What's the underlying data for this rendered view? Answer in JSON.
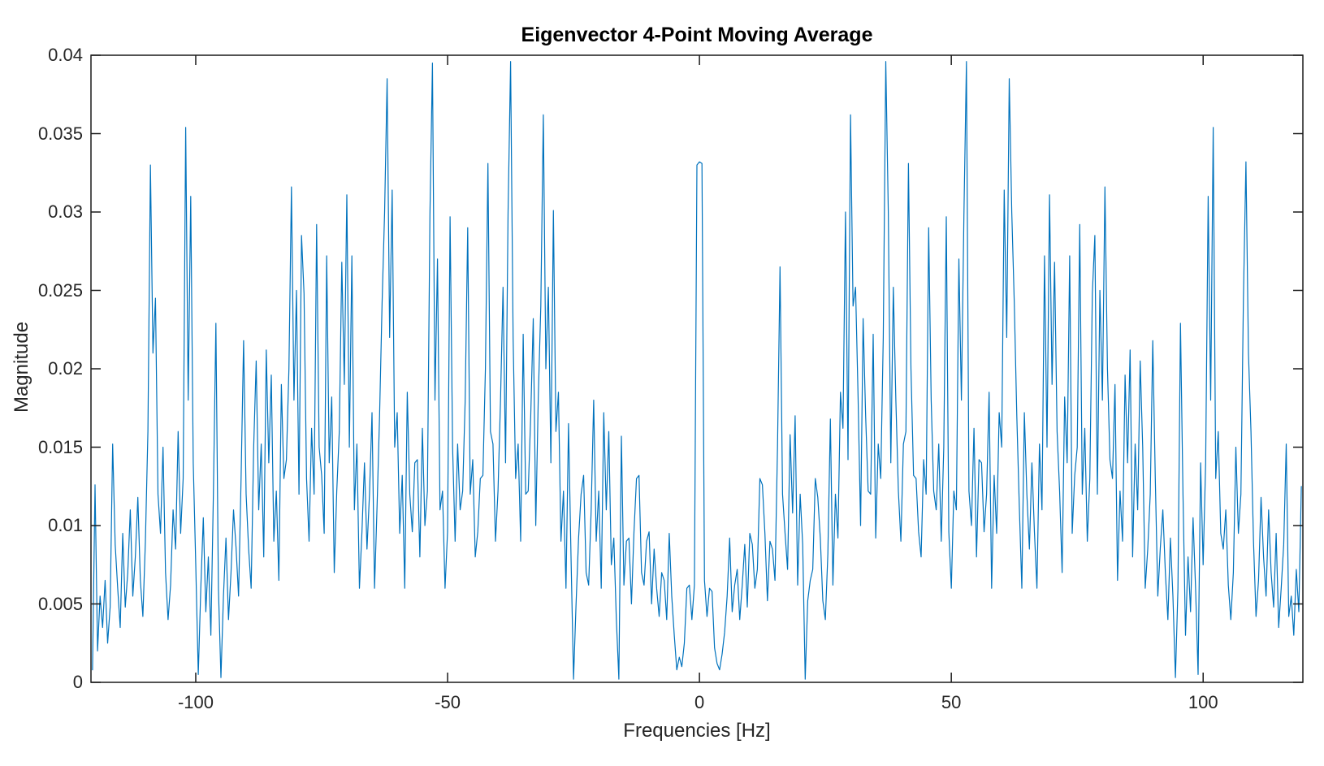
{
  "colors": {
    "line": "#0072BD",
    "axis": "#1a1a1a",
    "tick_text": "#262626",
    "title_text": "#000000",
    "background": "#ffffff"
  },
  "chart_data": {
    "type": "line",
    "title": "Eigenvector 4-Point Moving Average",
    "xlabel": "Frequencies [Hz]",
    "ylabel": "Magnitude",
    "xlim": [
      -120.8,
      119.8
    ],
    "ylim": [
      0,
      0.04
    ],
    "x_ticks": [
      -100,
      -50,
      0,
      50,
      100
    ],
    "x_tick_labels": [
      "-100",
      "-50",
      "0",
      "50",
      "100"
    ],
    "y_ticks": [
      0,
      0.005,
      0.01,
      0.015,
      0.02,
      0.025,
      0.03,
      0.035,
      0.04
    ],
    "y_tick_labels": [
      "0",
      "0.005",
      "0.01",
      "0.015",
      "0.02",
      "0.025",
      "0.03",
      "0.035",
      "0.04"
    ],
    "grid": false,
    "box": true,
    "tick_direction": "in",
    "legend": null,
    "line_color": "#0072BD",
    "series": [
      {
        "name": "eigenvector-4pt-moving-average-spectrum",
        "x_start": -120.5,
        "x_step": 0.5,
        "y_scale": 0.0001,
        "y_scaled": [
          8,
          126,
          20,
          55,
          35,
          65,
          25,
          48,
          152,
          88,
          60,
          35,
          95,
          48,
          70,
          110,
          55,
          80,
          118,
          65,
          42,
          90,
          160,
          330,
          210,
          245,
          120,
          95,
          150,
          70,
          40,
          62,
          110,
          85,
          160,
          95,
          130,
          354,
          180,
          310,
          140,
          75,
          5,
          60,
          105,
          45,
          80,
          30,
          120,
          229,
          60,
          3,
          55,
          92,
          40,
          70,
          110,
          86,
          55,
          130,
          218,
          120,
          85,
          60,
          150,
          205,
          110,
          152,
          80,
          212,
          140,
          196,
          90,
          122,
          65,
          190,
          130,
          142,
          200,
          316,
          180,
          250,
          120,
          285,
          248,
          130,
          90,
          162,
          120,
          292,
          150,
          132,
          95,
          272,
          140,
          182,
          70,
          122,
          160,
          268,
          190,
          311,
          150,
          272,
          110,
          152,
          60,
          96,
          140,
          85,
          120,
          172,
          60,
          112,
          170,
          242,
          300,
          385,
          220,
          314,
          150,
          172,
          95,
          132,
          60,
          185,
          120,
          96,
          140,
          142,
          80,
          162,
          100,
          122,
          298,
          395,
          180,
          270,
          110,
          122,
          60,
          96,
          297,
          150,
          90,
          152,
          110,
          122,
          180,
          290,
          120,
          142,
          80,
          96,
          130,
          132,
          200,
          331,
          160,
          152,
          90,
          122,
          180,
          252,
          140,
          300,
          396,
          220,
          130,
          152,
          90,
          222,
          120,
          122,
          170,
          232,
          100,
          182,
          240,
          362,
          200,
          252,
          140,
          301,
          160,
          185,
          90,
          122,
          60,
          165,
          80,
          2,
          50,
          92,
          120,
          132,
          70,
          62,
          110,
          180,
          90,
          122,
          60,
          172,
          110,
          160,
          75,
          92,
          40,
          2,
          157,
          62,
          90,
          92,
          50,
          96,
          130,
          132,
          70,
          62,
          90,
          96,
          50,
          85,
          60,
          42,
          70,
          65,
          40,
          95,
          55,
          30,
          8,
          16,
          10,
          25,
          60,
          62,
          40,
          62,
          330,
          332,
          331,
          65,
          42,
          60,
          58,
          22,
          12,
          8,
          18,
          32,
          55,
          92,
          45,
          62,
          72,
          40,
          62,
          88,
          48,
          95,
          88,
          60,
          72,
          130,
          126,
          95,
          52,
          90,
          85,
          65,
          150,
          265,
          120,
          95,
          72,
          158,
          108,
          170,
          62,
          120,
          88,
          2,
          52,
          65,
          72,
          130,
          118,
          92,
          52,
          40,
          82,
          168,
          62,
          120,
          92,
          185,
          162,
          300,
          142,
          362,
          240,
          252,
          182,
          100,
          232,
          170,
          122,
          120,
          222,
          92,
          152,
          130,
          220,
          396,
          300,
          140,
          252,
          180,
          122,
          90,
          152,
          160,
          331,
          200,
          132,
          130,
          96,
          80,
          142,
          120,
          290,
          180,
          122,
          110,
          152,
          90,
          150,
          297,
          96,
          60,
          122,
          110,
          270,
          180,
          298,
          396,
          122,
          100,
          162,
          80,
          142,
          140,
          96,
          120,
          185,
          60,
          132,
          95,
          172,
          150,
          314,
          220,
          385,
          300,
          242,
          170,
          112,
          60,
          172,
          120,
          85,
          140,
          96,
          60,
          152,
          110,
          272,
          150,
          311,
          190,
          268,
          160,
          122,
          70,
          182,
          140,
          272,
          95,
          132,
          150,
          292,
          120,
          162,
          90,
          130,
          248,
          285,
          120,
          250,
          180,
          316,
          200,
          142,
          130,
          190,
          65,
          122,
          90,
          196,
          140,
          212,
          80,
          152,
          110,
          205,
          150,
          60,
          85,
          120,
          218,
          130,
          55,
          86,
          110,
          70,
          40,
          92,
          55,
          3,
          60,
          229,
          120,
          30,
          80,
          45,
          105,
          60,
          5,
          140,
          75,
          140,
          310,
          180,
          354,
          130,
          160,
          95,
          85,
          110,
          62,
          40,
          70,
          150,
          95,
          120,
          245,
          332,
          210,
          160,
          90,
          42,
          65,
          118,
          80,
          55,
          110,
          70,
          48,
          95,
          35,
          60,
          88,
          152,
          42,
          55,
          30,
          72,
          45,
          125
        ]
      }
    ]
  }
}
